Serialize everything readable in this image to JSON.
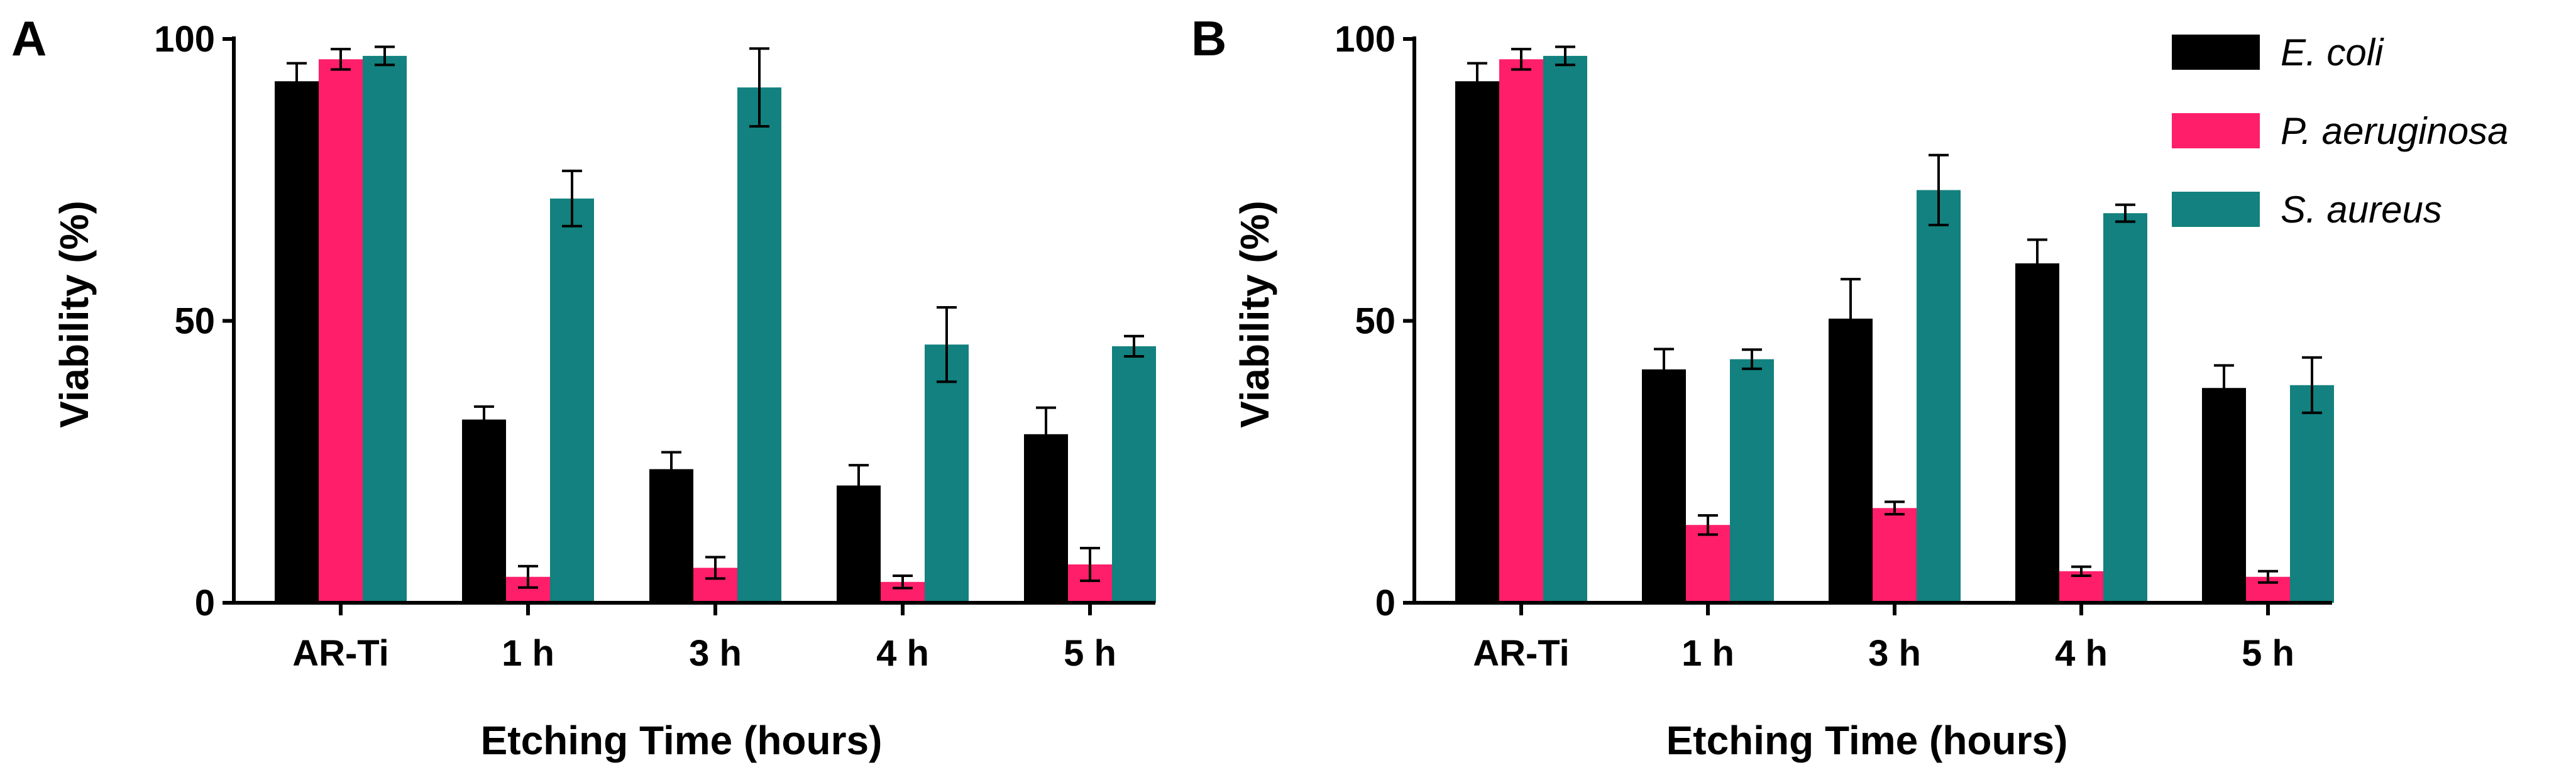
{
  "chart_data": [
    {
      "type": "bar",
      "panel_label": "A",
      "title": "",
      "xlabel": "Etching Time (hours)",
      "ylabel": "Viability (%)",
      "ylim": [
        0,
        100
      ],
      "yticks": [
        "0",
        "50",
        "100"
      ],
      "categories": [
        "AR-Ti",
        "1 h",
        "3 h",
        "4 h",
        "5 h"
      ],
      "series": [
        {
          "name": "E. coli",
          "color": "#000000",
          "values": [
            92.5,
            32.5,
            23.7,
            20.8,
            29.9
          ],
          "errors": [
            3.2,
            2.3,
            3.0,
            3.6,
            4.7
          ]
        },
        {
          "name": "P. aeruginosa",
          "color": "#ff1e6a",
          "values": [
            96.4,
            4.6,
            6.2,
            3.7,
            6.8
          ],
          "errors": [
            1.8,
            1.9,
            1.9,
            1.1,
            2.9
          ]
        },
        {
          "name": "S. aureus",
          "color": "#12817f",
          "values": [
            97.0,
            71.7,
            91.4,
            45.8,
            45.5
          ],
          "errors": [
            1.6,
            4.9,
            6.9,
            6.6,
            1.8
          ]
        }
      ]
    },
    {
      "type": "bar",
      "panel_label": "B",
      "title": "",
      "xlabel": "Etching Time (hours)",
      "ylabel": "Viability (%)",
      "ylim": [
        0,
        100
      ],
      "yticks": [
        "0",
        "50",
        "100"
      ],
      "categories": [
        "AR-Ti",
        "1 h",
        "3 h",
        "4 h",
        "5 h"
      ],
      "legend_position": "top-right",
      "series": [
        {
          "name": "E. coli",
          "color": "#000000",
          "values": [
            92.5,
            41.4,
            50.4,
            60.2,
            38.1
          ],
          "errors": [
            3.2,
            3.6,
            7.0,
            4.2,
            4.0
          ]
        },
        {
          "name": "P. aeruginosa",
          "color": "#ff1e6a",
          "values": [
            96.4,
            13.8,
            16.8,
            5.6,
            4.6
          ],
          "errors": [
            1.8,
            1.7,
            1.1,
            0.8,
            1.0
          ]
        },
        {
          "name": "S. aureus",
          "color": "#12817f",
          "values": [
            97.0,
            43.2,
            73.2,
            69.1,
            38.6
          ],
          "errors": [
            1.6,
            1.7,
            6.2,
            1.5,
            4.9
          ]
        }
      ]
    }
  ]
}
